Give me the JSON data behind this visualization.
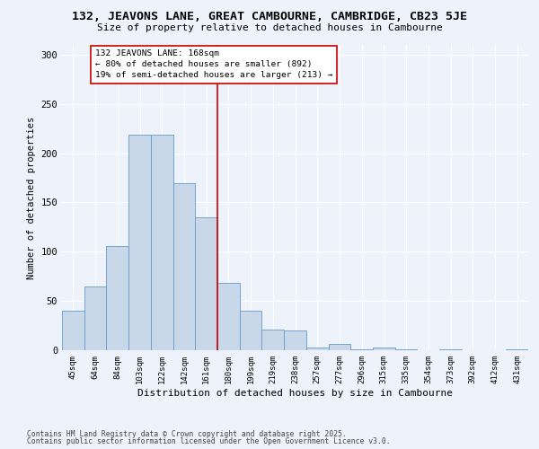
{
  "title1": "132, JEAVONS LANE, GREAT CAMBOURNE, CAMBRIDGE, CB23 5JE",
  "title2": "Size of property relative to detached houses in Cambourne",
  "xlabel": "Distribution of detached houses by size in Cambourne",
  "ylabel": "Number of detached properties",
  "categories": [
    "45sqm",
    "64sqm",
    "84sqm",
    "103sqm",
    "122sqm",
    "142sqm",
    "161sqm",
    "180sqm",
    "199sqm",
    "219sqm",
    "238sqm",
    "257sqm",
    "277sqm",
    "296sqm",
    "315sqm",
    "335sqm",
    "354sqm",
    "373sqm",
    "392sqm",
    "412sqm",
    "431sqm"
  ],
  "values": [
    40,
    65,
    106,
    219,
    219,
    170,
    135,
    68,
    40,
    21,
    20,
    3,
    6,
    1,
    3,
    1,
    0,
    1,
    0,
    0,
    1
  ],
  "bar_color": "#c8d8e8",
  "bar_edge_color": "#6699cc",
  "vline_x": 6.5,
  "vline_color": "#cc0000",
  "annotation_text": "132 JEAVONS LANE: 168sqm\n← 80% of detached houses are smaller (892)\n19% of semi-detached houses are larger (213) →",
  "annotation_box_color": "#ffffff",
  "annotation_box_edge": "#cc0000",
  "ylim": [
    0,
    310
  ],
  "yticks": [
    0,
    50,
    100,
    150,
    200,
    250,
    300
  ],
  "footer1": "Contains HM Land Registry data © Crown copyright and database right 2025.",
  "footer2": "Contains public sector information licensed under the Open Government Licence v3.0.",
  "bg_color": "#eef2fa",
  "grid_color": "#ffffff",
  "title1_fontsize": 9.5,
  "title2_fontsize": 8,
  "annotation_fontsize": 6.8,
  "footer_fontsize": 5.8,
  "ylabel_fontsize": 7.5,
  "xlabel_fontsize": 8,
  "ytick_fontsize": 7.5,
  "xtick_fontsize": 6.5
}
